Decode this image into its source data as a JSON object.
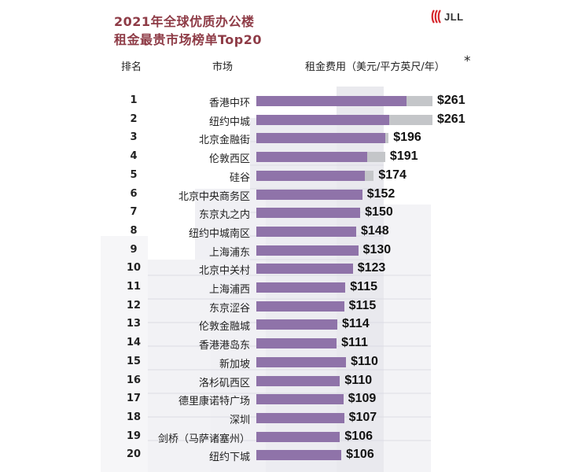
{
  "title": {
    "line1": "2021年全球优质办公楼",
    "line2": "租金最贵市场榜单Top20"
  },
  "logo": {
    "text": "JLL",
    "icon": "jll-logo-icon"
  },
  "headers": {
    "rank": "排名",
    "market": "市场",
    "rent": "租金费用（美元/平方英尺/年）",
    "footnote_mark": "*"
  },
  "colors": {
    "title": "#8e3b46",
    "bar_primary": "#8f73a9",
    "bar_secondary": "#c4c6c9"
  },
  "chart_data": {
    "type": "bar",
    "orientation": "horizontal",
    "categories": [
      "香港中环",
      "纽约中城",
      "北京金融街",
      "伦敦西区",
      "硅谷",
      "北京中央商务区",
      "东京丸之内",
      "纽约中城南区",
      "上海浦东",
      "北京中关村",
      "上海浦西",
      "东京涩谷",
      "伦敦金融城",
      "香港港岛东",
      "新加坡",
      "洛杉矶西区",
      "德里康诺特广场",
      "深圳",
      "剑桥（马萨诸塞州）",
      "纽约下城"
    ],
    "ranks": [
      "1",
      "2",
      "3",
      "4",
      "5",
      "6",
      "7",
      "8",
      "9",
      "10",
      "11",
      "12",
      "13",
      "14",
      "15",
      "16",
      "17",
      "18",
      "19",
      "20"
    ],
    "value_labels": [
      "$261",
      "$261",
      "$196",
      "$191",
      "$174",
      "$152",
      "$150",
      "$148",
      "$130",
      "$123",
      "$115",
      "$115",
      "$114",
      "$111",
      "$110",
      "$110",
      "$109",
      "$107",
      "$106",
      "$106"
    ],
    "values": [
      261,
      261,
      196,
      191,
      174,
      152,
      150,
      148,
      130,
      123,
      115,
      115,
      114,
      111,
      110,
      110,
      109,
      107,
      106,
      106
    ],
    "secondary_values": [
      222,
      197,
      191,
      164,
      161,
      157,
      154,
      148,
      151,
      143,
      132,
      130,
      120,
      119,
      133,
      124,
      129,
      130,
      124,
      126
    ],
    "xlim": [
      0,
      261
    ]
  }
}
